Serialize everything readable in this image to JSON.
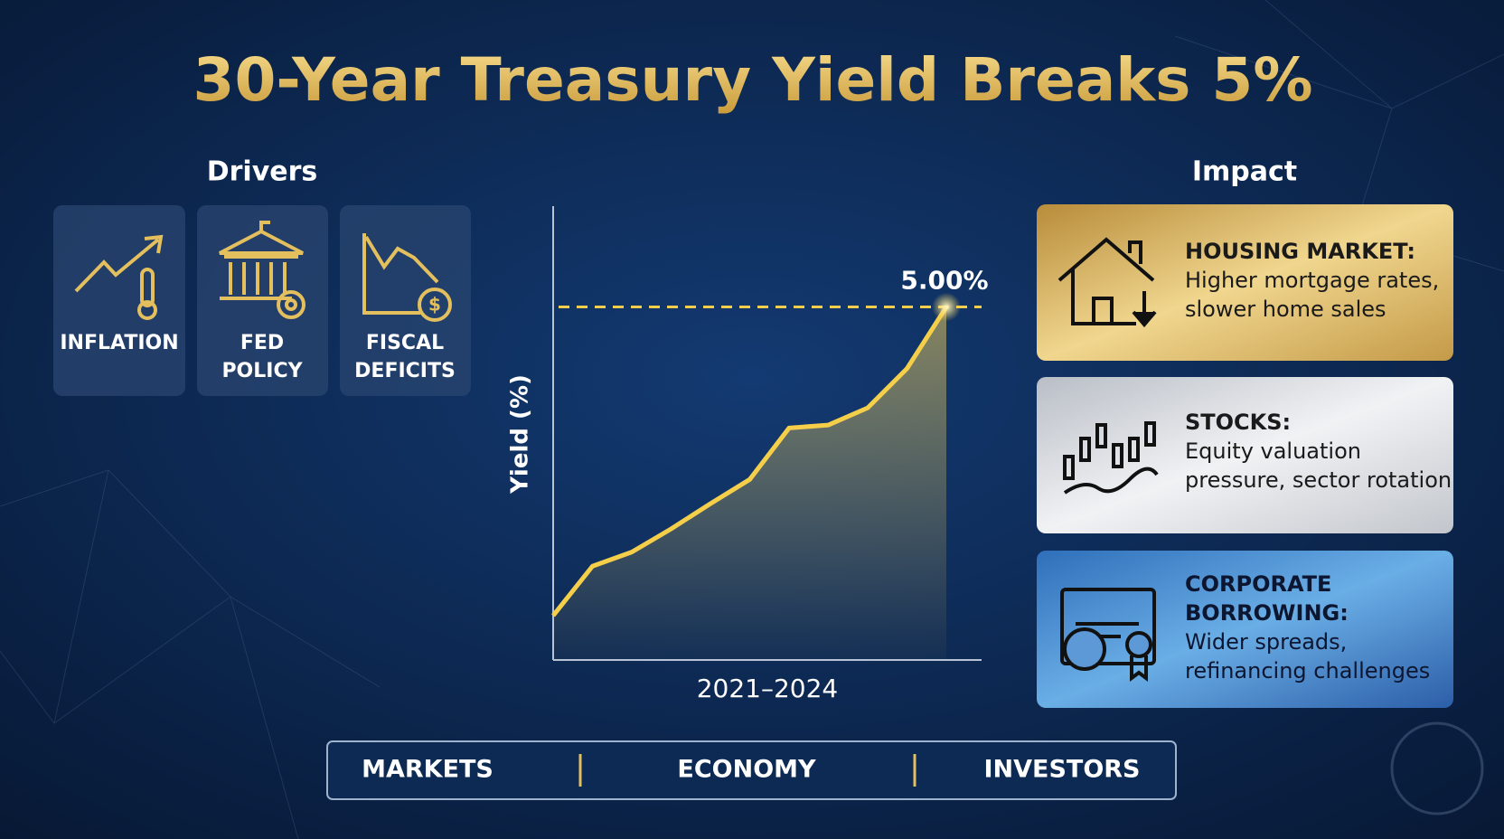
{
  "header": {
    "title": "30-Year Treasury Yield Breaks 5%"
  },
  "drivers": {
    "heading": "Drivers",
    "items": [
      {
        "lines": [
          "INFLATION"
        ]
      },
      {
        "lines": [
          "FED",
          "POLICY"
        ]
      },
      {
        "lines": [
          "FISCAL",
          "DEFICITS"
        ]
      }
    ]
  },
  "chart_data": {
    "type": "line",
    "x_label": "2021–2024",
    "y_label": "Yield (%)",
    "values": [
      1.94,
      2.43,
      2.57,
      2.8,
      3.05,
      3.29,
      3.8,
      3.83,
      4.0,
      4.39,
      5.0
    ],
    "color": "#f5cf4a",
    "ylim": [
      1.5,
      6
    ],
    "reference_line": {
      "value": 5,
      "label": "5.00%"
    }
  },
  "impact": {
    "heading": "Impact",
    "cards": [
      {
        "title": "HOUSING MARKET:",
        "body": [
          "Higher mortgage rates,",
          "slower home sales"
        ]
      },
      {
        "title": "STOCKS:",
        "body": [
          "Equity valuation",
          "pressure, sector rotation"
        ]
      },
      {
        "title": "CORPORATE",
        "title2": "BORROWING:",
        "body": [
          "Wider spreads,",
          "refinancing challenges"
        ]
      }
    ]
  },
  "footer": {
    "tabs": [
      "MARKETS",
      "ECONOMY",
      "INVESTORS"
    ]
  }
}
